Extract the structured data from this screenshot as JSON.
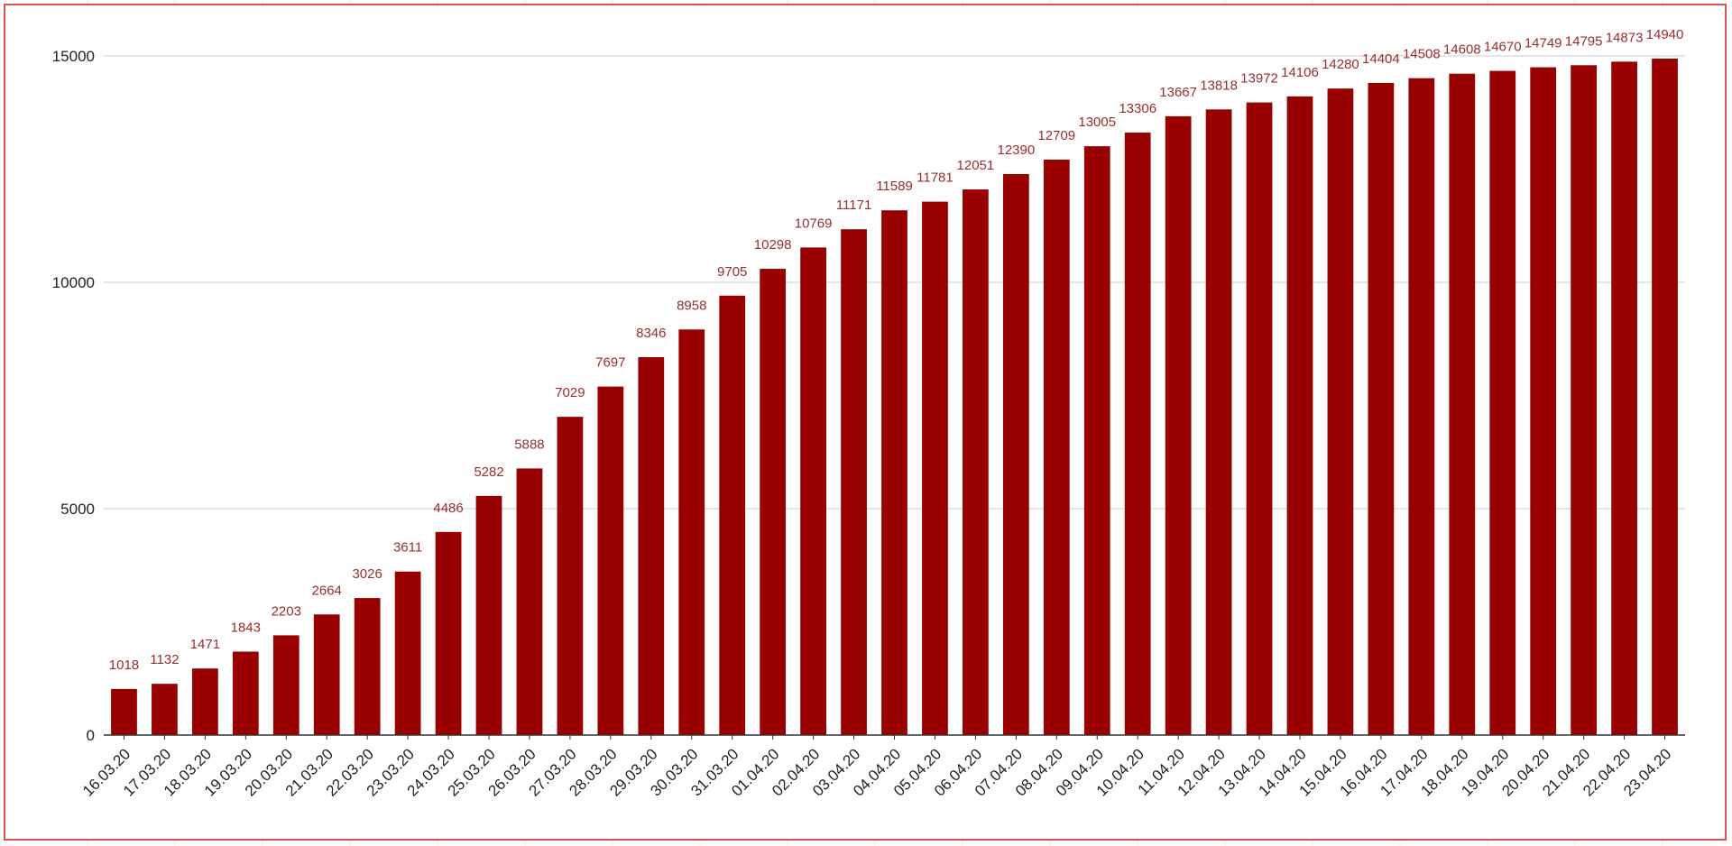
{
  "chart_data": {
    "type": "bar",
    "title": "",
    "xlabel": "",
    "ylabel": "",
    "categories": [
      "16.03.20",
      "17.03.20",
      "18.03.20",
      "19.03.20",
      "20.03.20",
      "21.03.20",
      "22.03.20",
      "23.03.20",
      "24.03.20",
      "25.03.20",
      "26.03.20",
      "27.03.20",
      "28.03.20",
      "29.03.20",
      "30.03.20",
      "31.03.20",
      "01.04.20",
      "02.04.20",
      "03.04.20",
      "04.04.20",
      "05.04.20",
      "06.04.20",
      "07.04.20",
      "08.04.20",
      "09.04.20",
      "10.04.20",
      "11.04.20",
      "12.04.20",
      "13.04.20",
      "14.04.20",
      "15.04.20",
      "16.04.20",
      "17.04.20",
      "18.04.20",
      "19.04.20",
      "20.04.20",
      "21.04.20",
      "22.04.20",
      "23.04.20"
    ],
    "values": [
      1018,
      1132,
      1471,
      1843,
      2203,
      2664,
      3026,
      3611,
      4486,
      5282,
      5888,
      7029,
      7697,
      8346,
      8958,
      9705,
      10298,
      10769,
      11171,
      11589,
      11781,
      12051,
      12390,
      12709,
      13005,
      13306,
      13667,
      13818,
      13972,
      14106,
      14280,
      14404,
      14508,
      14608,
      14670,
      14749,
      14795,
      14873,
      14940
    ],
    "ylim": [
      0,
      15000
    ],
    "yticks": [
      0,
      5000,
      10000,
      15000
    ],
    "grid": true,
    "legend": "none",
    "colors": {
      "bar": "#990000",
      "data_label": "#9b2c2c",
      "grid": "#cccccc",
      "axis": "#333333",
      "frame": "#d9534f"
    }
  }
}
